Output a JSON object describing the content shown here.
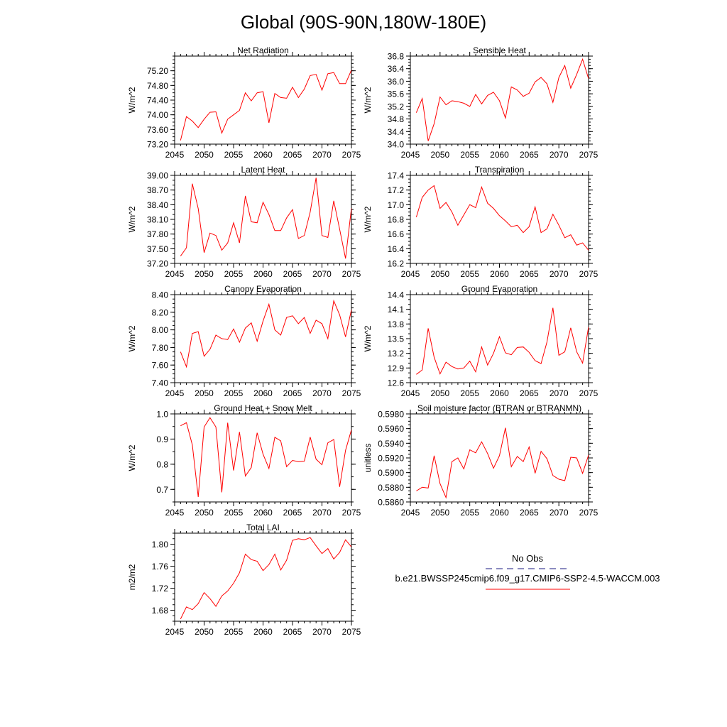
{
  "title": "Global (90S-90N,180W-180E)",
  "colors": {
    "line": "#ff0000",
    "axis": "#000000",
    "obs": "#1a1a80"
  },
  "chart_data": [
    {
      "type": "line",
      "title": "Net Radiation",
      "ylabel": "W/m^2",
      "xlim": [
        2045,
        2075
      ],
      "ylim": [
        73.2,
        75.6
      ],
      "xticks": [
        2045,
        2050,
        2055,
        2060,
        2065,
        2070,
        2075
      ],
      "yticks": [
        73.2,
        73.6,
        74.0,
        74.4,
        74.8,
        75.2
      ],
      "ytick_labels": [
        "73.20",
        "73.60",
        "74.00",
        "74.40",
        "74.80",
        "75.20"
      ],
      "ymin_ticks_step": 0.1,
      "x": [
        2046,
        2047,
        2048,
        2049,
        2050,
        2051,
        2052,
        2053,
        2054,
        2055,
        2056,
        2057,
        2058,
        2059,
        2060,
        2061,
        2062,
        2063,
        2064,
        2065,
        2066,
        2067,
        2068,
        2069,
        2070,
        2071,
        2072,
        2073,
        2074,
        2075
      ],
      "values": [
        73.3,
        73.95,
        73.83,
        73.65,
        73.88,
        74.07,
        74.08,
        73.5,
        73.88,
        74.0,
        74.12,
        74.6,
        74.38,
        74.6,
        74.63,
        73.78,
        74.58,
        74.47,
        74.45,
        74.75,
        74.47,
        74.7,
        75.07,
        75.1,
        74.67,
        75.12,
        75.15,
        74.85,
        74.85,
        75.22
      ]
    },
    {
      "type": "line",
      "title": "Sensible Heat",
      "ylabel": "W/m^2",
      "xlim": [
        2045,
        2075
      ],
      "ylim": [
        34.0,
        36.8
      ],
      "xticks": [
        2045,
        2050,
        2055,
        2060,
        2065,
        2070,
        2075
      ],
      "yticks": [
        34.0,
        34.4,
        34.8,
        35.2,
        35.6,
        36.0,
        36.4,
        36.8
      ],
      "ytick_labels": [
        "34.0",
        "34.4",
        "34.8",
        "35.2",
        "35.6",
        "36.0",
        "36.4",
        "36.8"
      ],
      "ymin_ticks_step": 0.1,
      "x": [
        2046,
        2047,
        2048,
        2049,
        2050,
        2051,
        2052,
        2053,
        2054,
        2055,
        2056,
        2057,
        2058,
        2059,
        2060,
        2061,
        2062,
        2063,
        2064,
        2065,
        2066,
        2067,
        2068,
        2069,
        2070,
        2071,
        2072,
        2073,
        2074,
        2075
      ],
      "values": [
        35.0,
        35.45,
        34.1,
        34.65,
        35.5,
        35.25,
        35.38,
        35.35,
        35.3,
        35.2,
        35.58,
        35.28,
        35.55,
        35.65,
        35.38,
        34.83,
        35.82,
        35.72,
        35.52,
        35.62,
        35.98,
        36.12,
        35.92,
        35.33,
        36.12,
        36.5,
        35.78,
        36.22,
        36.7,
        36.08
      ]
    },
    {
      "type": "line",
      "title": "Latent Heat",
      "ylabel": "W/m^2",
      "xlim": [
        2045,
        2075
      ],
      "ylim": [
        37.2,
        39.0
      ],
      "xticks": [
        2045,
        2050,
        2055,
        2060,
        2065,
        2070,
        2075
      ],
      "yticks": [
        37.2,
        37.5,
        37.8,
        38.1,
        38.4,
        38.7,
        39.0
      ],
      "ytick_labels": [
        "37.20",
        "37.50",
        "37.80",
        "38.10",
        "38.40",
        "38.70",
        "39.00"
      ],
      "ymin_ticks_step": 0.1,
      "x": [
        2046,
        2047,
        2048,
        2049,
        2050,
        2051,
        2052,
        2053,
        2054,
        2055,
        2056,
        2057,
        2058,
        2059,
        2060,
        2061,
        2062,
        2063,
        2064,
        2065,
        2066,
        2067,
        2068,
        2069,
        2070,
        2071,
        2072,
        2073,
        2074,
        2075
      ],
      "values": [
        37.35,
        37.52,
        38.83,
        38.32,
        37.42,
        37.82,
        37.77,
        37.47,
        37.62,
        38.03,
        37.62,
        38.58,
        38.05,
        38.03,
        38.45,
        38.2,
        37.87,
        37.87,
        38.13,
        38.3,
        37.71,
        37.77,
        38.25,
        38.95,
        37.77,
        37.73,
        38.48,
        37.9,
        37.3,
        38.33
      ]
    },
    {
      "type": "line",
      "title": "Transpiration",
      "ylabel": "W/m^2",
      "xlim": [
        2045,
        2075
      ],
      "ylim": [
        16.2,
        17.4
      ],
      "xticks": [
        2045,
        2050,
        2055,
        2060,
        2065,
        2070,
        2075
      ],
      "yticks": [
        16.2,
        16.4,
        16.6,
        16.8,
        17.0,
        17.2,
        17.4
      ],
      "ytick_labels": [
        "16.2",
        "16.4",
        "16.6",
        "16.8",
        "17.0",
        "17.2",
        "17.4"
      ],
      "ymin_ticks_step": 0.05,
      "x": [
        2046,
        2047,
        2048,
        2049,
        2050,
        2051,
        2052,
        2053,
        2054,
        2055,
        2056,
        2057,
        2058,
        2059,
        2060,
        2061,
        2062,
        2063,
        2064,
        2065,
        2066,
        2067,
        2068,
        2069,
        2070,
        2071,
        2072,
        2073,
        2074,
        2075
      ],
      "values": [
        16.83,
        17.1,
        17.2,
        17.26,
        16.95,
        17.03,
        16.9,
        16.72,
        16.86,
        17.0,
        16.96,
        17.24,
        17.02,
        16.95,
        16.85,
        16.78,
        16.7,
        16.72,
        16.62,
        16.7,
        16.97,
        16.62,
        16.67,
        16.87,
        16.72,
        16.55,
        16.59,
        16.45,
        16.48,
        16.38
      ]
    },
    {
      "type": "line",
      "title": "Canopy Evaporation",
      "ylabel": "W/m^2",
      "xlim": [
        2045,
        2075
      ],
      "ylim": [
        7.4,
        8.4
      ],
      "xticks": [
        2045,
        2050,
        2055,
        2060,
        2065,
        2070,
        2075
      ],
      "yticks": [
        7.4,
        7.6,
        7.8,
        8.0,
        8.2,
        8.4
      ],
      "ytick_labels": [
        "7.40",
        "7.60",
        "7.80",
        "8.00",
        "8.20",
        "8.40"
      ],
      "ymin_ticks_step": 0.05,
      "x": [
        2046,
        2047,
        2048,
        2049,
        2050,
        2051,
        2052,
        2053,
        2054,
        2055,
        2056,
        2057,
        2058,
        2059,
        2060,
        2061,
        2062,
        2063,
        2064,
        2065,
        2066,
        2067,
        2068,
        2069,
        2070,
        2071,
        2072,
        2073,
        2074,
        2075
      ],
      "values": [
        7.75,
        7.58,
        7.96,
        7.98,
        7.7,
        7.78,
        7.94,
        7.9,
        7.89,
        8.01,
        7.86,
        8.02,
        8.08,
        7.87,
        8.1,
        8.29,
        8.0,
        7.94,
        8.14,
        8.16,
        8.07,
        8.14,
        7.96,
        8.11,
        8.07,
        7.9,
        8.33,
        8.17,
        7.92,
        8.23
      ]
    },
    {
      "type": "line",
      "title": "Ground Evaporation",
      "ylabel": "W/m^2",
      "xlim": [
        2045,
        2075
      ],
      "ylim": [
        12.6,
        14.4
      ],
      "xticks": [
        2045,
        2050,
        2055,
        2060,
        2065,
        2070,
        2075
      ],
      "yticks": [
        12.6,
        12.9,
        13.2,
        13.5,
        13.8,
        14.1,
        14.4
      ],
      "ytick_labels": [
        "12.6",
        "12.9",
        "13.2",
        "13.5",
        "13.8",
        "14.1",
        "14.4"
      ],
      "ymin_ticks_step": 0.1,
      "x": [
        2046,
        2047,
        2048,
        2049,
        2050,
        2051,
        2052,
        2053,
        2054,
        2055,
        2056,
        2057,
        2058,
        2059,
        2060,
        2061,
        2062,
        2063,
        2064,
        2065,
        2066,
        2067,
        2068,
        2069,
        2070,
        2071,
        2072,
        2073,
        2074,
        2075
      ],
      "values": [
        12.77,
        12.86,
        13.71,
        13.12,
        12.78,
        13.02,
        12.93,
        12.88,
        12.9,
        13.04,
        12.82,
        13.33,
        12.96,
        13.2,
        13.54,
        13.21,
        13.17,
        13.32,
        13.33,
        13.22,
        13.05,
        12.99,
        13.43,
        14.13,
        13.16,
        13.23,
        13.72,
        13.23,
        13.0,
        13.74
      ]
    },
    {
      "type": "line",
      "title": "Ground Heat + Snow Melt",
      "ylabel": "W/m^2",
      "xlim": [
        2045,
        2075
      ],
      "ylim": [
        0.65,
        1.0
      ],
      "xticks": [
        2045,
        2050,
        2055,
        2060,
        2065,
        2070,
        2075
      ],
      "yticks": [
        0.7,
        0.8,
        0.9,
        1.0
      ],
      "ytick_labels": [
        "0.7",
        "0.8",
        "0.9",
        "1.0"
      ],
      "ymin_ticks_step": 0.05,
      "x": [
        2046,
        2047,
        2048,
        2049,
        2050,
        2051,
        2052,
        2053,
        2054,
        2055,
        2056,
        2057,
        2058,
        2059,
        2060,
        2061,
        2062,
        2063,
        2064,
        2065,
        2066,
        2067,
        2068,
        2069,
        2070,
        2071,
        2072,
        2073,
        2074,
        2075
      ],
      "values": [
        0.953,
        0.965,
        0.877,
        0.67,
        0.948,
        0.985,
        0.948,
        0.688,
        0.965,
        0.775,
        0.928,
        0.753,
        0.787,
        0.925,
        0.84,
        0.783,
        0.907,
        0.893,
        0.79,
        0.815,
        0.81,
        0.812,
        0.908,
        0.82,
        0.798,
        0.885,
        0.898,
        0.71,
        0.855,
        0.937
      ]
    },
    {
      "type": "line",
      "title": "Soil moisture factor (BTRAN or BTRANMN)",
      "ylabel": "unitless",
      "xlim": [
        2045,
        2075
      ],
      "ylim": [
        0.586,
        0.598
      ],
      "xticks": [
        2045,
        2050,
        2055,
        2060,
        2065,
        2070,
        2075
      ],
      "yticks": [
        0.586,
        0.588,
        0.59,
        0.592,
        0.594,
        0.596,
        0.598
      ],
      "ytick_labels": [
        "0.5860",
        "0.5880",
        "0.5900",
        "0.5920",
        "0.5940",
        "0.5960",
        "0.5980"
      ],
      "ymin_ticks_step": 0.0005,
      "x": [
        2046,
        2047,
        2048,
        2049,
        2050,
        2051,
        2052,
        2053,
        2054,
        2055,
        2056,
        2057,
        2058,
        2059,
        2060,
        2061,
        2062,
        2063,
        2064,
        2065,
        2066,
        2067,
        2068,
        2069,
        2070,
        2071,
        2072,
        2073,
        2074,
        2075
      ],
      "values": [
        0.5875,
        0.588,
        0.5879,
        0.5923,
        0.5885,
        0.5866,
        0.5915,
        0.592,
        0.5905,
        0.5931,
        0.5927,
        0.5942,
        0.5926,
        0.5906,
        0.5923,
        0.5961,
        0.5908,
        0.5922,
        0.5915,
        0.5935,
        0.5899,
        0.5929,
        0.5919,
        0.5896,
        0.5891,
        0.5889,
        0.5921,
        0.592,
        0.5899,
        0.5924
      ]
    },
    {
      "type": "line",
      "title": "Total LAI",
      "ylabel": "m2/m2",
      "xlim": [
        2045,
        2075
      ],
      "ylim": [
        1.66,
        1.82
      ],
      "xticks": [
        2045,
        2050,
        2055,
        2060,
        2065,
        2070,
        2075
      ],
      "yticks": [
        1.68,
        1.72,
        1.76,
        1.8
      ],
      "ytick_labels": [
        "1.68",
        "1.72",
        "1.76",
        "1.80"
      ],
      "ymin_ticks_step": 0.01,
      "x": [
        2046,
        2047,
        2048,
        2049,
        2050,
        2051,
        2052,
        2053,
        2054,
        2055,
        2056,
        2057,
        2058,
        2059,
        2060,
        2061,
        2062,
        2063,
        2064,
        2065,
        2066,
        2067,
        2068,
        2069,
        2070,
        2071,
        2072,
        2073,
        2074,
        2075
      ],
      "values": [
        1.664,
        1.686,
        1.681,
        1.692,
        1.712,
        1.701,
        1.687,
        1.706,
        1.715,
        1.729,
        1.748,
        1.782,
        1.772,
        1.769,
        1.752,
        1.763,
        1.782,
        1.753,
        1.771,
        1.807,
        1.81,
        1.808,
        1.812,
        1.797,
        1.783,
        1.792,
        1.773,
        1.785,
        1.808,
        1.795
      ]
    }
  ],
  "legend": {
    "obs_label": "No Obs",
    "case_label": "b.e21.BWSSP245cmip6.f09_g17.CMIP6-SSP2-4.5-WACCM.003"
  }
}
